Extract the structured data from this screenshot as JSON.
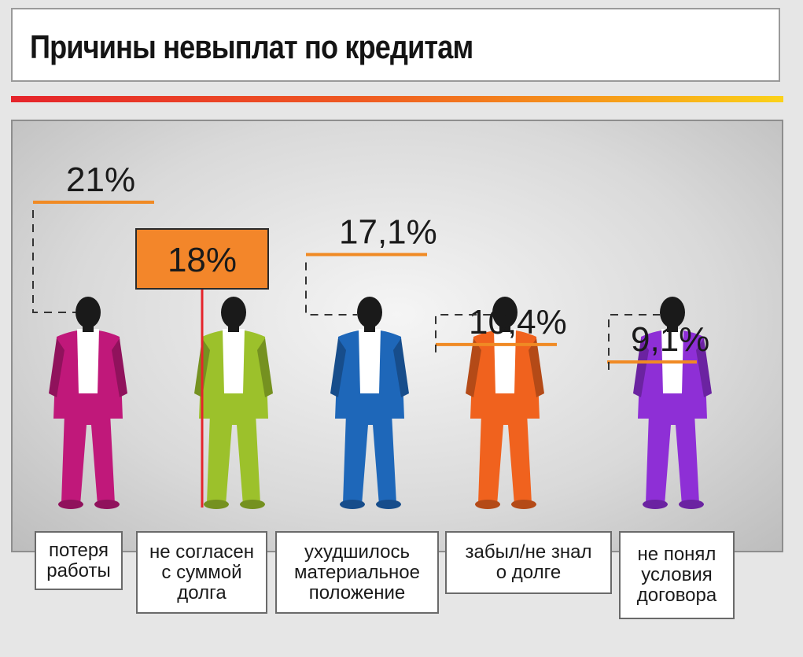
{
  "header": {
    "title": "Причины невыплат по кредитам"
  },
  "chart_data": {
    "type": "bar",
    "title": "Причины невыплат по кредитам",
    "unit": "%",
    "categories": [
      "потеря работы",
      "не согласен с суммой долга",
      "ухудшилось материальное положение",
      "забыл/не знал о долге",
      "не понял условия договора"
    ],
    "values": [
      21,
      18,
      17.1,
      10.4,
      9.1
    ],
    "value_labels": [
      "21%",
      "18%",
      "17,1%",
      "10,4%",
      "9,1%"
    ],
    "category_labels": [
      "потеря\nработы",
      "не согласен\nс суммой\nдолга",
      "ухудшилось\nматериальное\nположение",
      "забыл/не знал\nо долге",
      "не понял\nусловия\nдоговора"
    ],
    "colors": [
      "#c0187a",
      "#9cc12b",
      "#1e67b9",
      "#f0621e",
      "#8e2fd6"
    ],
    "accent_color": "#f08a24"
  }
}
